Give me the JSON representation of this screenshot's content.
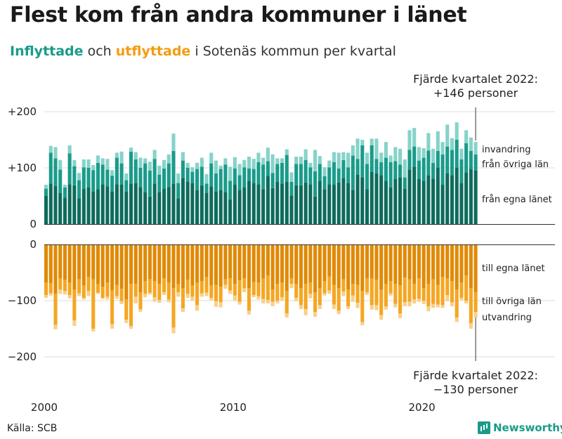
{
  "title": "Flest kom från andra kommuner i länet",
  "subtitle": {
    "in_word": "Inflyttade",
    "and_word": "och",
    "out_word": "utflyttade",
    "rest": "i Sotenäs kommun per kvartal"
  },
  "annotations": {
    "top_line1": "Fjärde kvartalet 2022:",
    "top_line2": "+146 personer",
    "bottom_line1": "Fjärde kvartalet 2022:",
    "bottom_line2": "−130 personer"
  },
  "segment_labels": {
    "in_immigration": "invandring",
    "in_other_counties": "från övriga län",
    "in_own_county": "från egna länet",
    "out_own_county": "till egna länet",
    "out_other_counties": "till övriga län",
    "out_emigration": "utvandring"
  },
  "source": "Källa: SCB",
  "brand": "Newsworthy",
  "colors": {
    "in_own": "#0e6b5c",
    "in_other": "#1a9b8a",
    "in_immig": "#86d3c9",
    "out_own": "#e08a06",
    "out_other": "#f5a623",
    "out_emig": "#f7d08a"
  },
  "chart_data": {
    "type": "bar",
    "stacked": true,
    "title": "Flest kom från andra kommuner i länet",
    "subtitle": "Inflyttade och utflyttade i Sotenäs kommun per kvartal",
    "x_start": "2000 Q1",
    "x_end": "2022 Q4",
    "x_ticks": [
      "2000",
      "2010",
      "2020"
    ],
    "y_ticks_top": [
      "+200",
      "+100",
      "0"
    ],
    "y_ticks_bottom": [
      "0",
      "−100",
      "−200"
    ],
    "ylim": [
      -200,
      200
    ],
    "series": [
      {
        "name": "från egna länet",
        "values": [
          50,
          72,
          68,
          55,
          47,
          71,
          69,
          46,
          63,
          65,
          58,
          62,
          71,
          67,
          58,
          71,
          70,
          58,
          72,
          73,
          66,
          57,
          49,
          72,
          57,
          63,
          66,
          72,
          46,
          82,
          75,
          73,
          60,
          69,
          55,
          67,
          58,
          60,
          57,
          44,
          70,
          61,
          65,
          77,
          73,
          71,
          62,
          86,
          64,
          75,
          72,
          75,
          51,
          69,
          69,
          74,
          71,
          49,
          77,
          62,
          71,
          70,
          74,
          82,
          73,
          61,
          88,
          83,
          62,
          93,
          90,
          87,
          77,
          65,
          80,
          83,
          63,
          97,
          102,
          80,
          77,
          87,
          81,
          100,
          70,
          90,
          87,
          100,
          73,
          92,
          98,
          95
        ]
      },
      {
        "name": "från övriga län",
        "values": [
          13,
          55,
          49,
          42,
          18,
          55,
          34,
          32,
          38,
          35,
          38,
          47,
          35,
          30,
          28,
          47,
          38,
          20,
          57,
          42,
          34,
          51,
          46,
          44,
          31,
          36,
          42,
          58,
          27,
          31,
          25,
          20,
          38,
          33,
          17,
          41,
          32,
          38,
          49,
          33,
          29,
          26,
          36,
          22,
          25,
          39,
          44,
          26,
          27,
          32,
          37,
          48,
          24,
          38,
          38,
          40,
          30,
          45,
          30,
          23,
          30,
          40,
          25,
          32,
          28,
          61,
          28,
          57,
          45,
          47,
          26,
          23,
          41,
          45,
          32,
          23,
          20,
          35,
          36,
          33,
          41,
          44,
          28,
          30,
          54,
          48,
          45,
          50,
          42,
          52,
          32,
          29
        ]
      },
      {
        "name": "invandring",
        "values": [
          7,
          12,
          20,
          17,
          5,
          14,
          11,
          13,
          14,
          15,
          9,
          13,
          11,
          19,
          10,
          9,
          21,
          12,
          7,
          13,
          18,
          9,
          16,
          16,
          16,
          15,
          16,
          31,
          17,
          15,
          9,
          8,
          11,
          16,
          17,
          19,
          23,
          6,
          11,
          25,
          20,
          20,
          13,
          21,
          18,
          17,
          12,
          24,
          33,
          10,
          8,
          10,
          17,
          13,
          13,
          19,
          8,
          38,
          14,
          16,
          12,
          18,
          28,
          14,
          26,
          18,
          36,
          10,
          20,
          12,
          36,
          17,
          28,
          12,
          25,
          28,
          32,
          35,
          33,
          24,
          17,
          31,
          25,
          35,
          22,
          39,
          21,
          31,
          19,
          23,
          24,
          22
        ]
      },
      {
        "name": "till egna länet",
        "values": [
          -68,
          -69,
          -88,
          -60,
          -63,
          -68,
          -80,
          -62,
          -73,
          -58,
          -62,
          -71,
          -75,
          -68,
          -82,
          -72,
          -79,
          -98,
          -70,
          -70,
          -85,
          -65,
          -62,
          -66,
          -70,
          -60,
          -68,
          -78,
          -70,
          -78,
          -63,
          -73,
          -68,
          -65,
          -58,
          -73,
          -72,
          -75,
          -62,
          -60,
          -70,
          -64,
          -60,
          -78,
          -67,
          -68,
          -61,
          -55,
          -80,
          -70,
          -68,
          -83,
          -60,
          -70,
          -78,
          -70,
          -68,
          -85,
          -78,
          -65,
          -57,
          -72,
          -78,
          -62,
          -80,
          -70,
          -72,
          -83,
          -60,
          -60,
          -63,
          -81,
          -70,
          -65,
          -70,
          -73,
          -59,
          -62,
          -70,
          -60,
          -78,
          -70,
          -62,
          -72,
          -58,
          -60,
          -65,
          -80,
          -68,
          -55,
          -78,
          -85
        ]
      },
      {
        "name": "till övriga län",
        "values": [
          -22,
          -18,
          -55,
          -20,
          -20,
          -22,
          -55,
          -25,
          -22,
          -25,
          -88,
          -15,
          -20,
          -25,
          -60,
          -20,
          -22,
          -36,
          -75,
          -23,
          -30,
          -23,
          -24,
          -28,
          -29,
          -25,
          -30,
          -70,
          -15,
          -36,
          -25,
          -20,
          -40,
          -22,
          -28,
          -22,
          -29,
          -28,
          -10,
          -22,
          -21,
          -38,
          -18,
          -40,
          -23,
          -24,
          -36,
          -44,
          -22,
          -30,
          -26,
          -40,
          -10,
          -25,
          -30,
          -45,
          -20,
          -35,
          -30,
          -22,
          -25,
          -35,
          -40,
          -22,
          -30,
          -21,
          -32,
          -55,
          -25,
          -48,
          -45,
          -45,
          -40,
          -22,
          -36,
          -50,
          -44,
          -40,
          -28,
          -37,
          -22,
          -40,
          -44,
          -35,
          -50,
          -30,
          -38,
          -50,
          -27,
          -45,
          -62,
          -35
        ]
      },
      {
        "name": "utvandring",
        "values": [
          -5,
          -4,
          -8,
          -8,
          -6,
          -6,
          -10,
          -5,
          -3,
          -9,
          -5,
          -2,
          -2,
          -5,
          -8,
          -5,
          -5,
          -6,
          -5,
          -12,
          -5,
          -6,
          -3,
          -8,
          -5,
          -5,
          -5,
          -10,
          -8,
          -6,
          -7,
          -7,
          -10,
          -6,
          -6,
          -4,
          -10,
          -9,
          -7,
          -6,
          -9,
          -5,
          -7,
          -7,
          -4,
          -6,
          -8,
          -6,
          -8,
          -5,
          -6,
          -7,
          -8,
          -6,
          -7,
          -11,
          -8,
          -9,
          -7,
          -4,
          -6,
          -8,
          -6,
          -8,
          -5,
          -11,
          -9,
          -6,
          -5,
          -8,
          -9,
          -8,
          -6,
          -4,
          -6,
          -8,
          -7,
          -8,
          -7,
          -5,
          -6,
          -9,
          -7,
          -5,
          -5,
          -11,
          -7,
          -8,
          -4,
          -5,
          -10,
          -10
        ]
      }
    ]
  }
}
